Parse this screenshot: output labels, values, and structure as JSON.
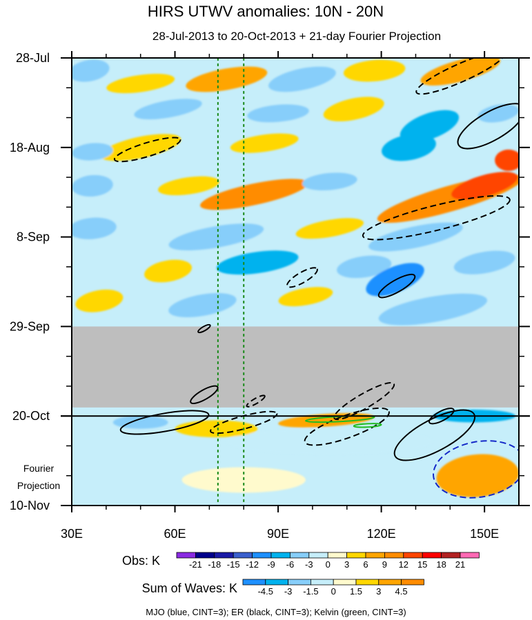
{
  "chart_data": {
    "type": "heatmap",
    "title": "HIRS UTWV anomalies: 10N - 20N",
    "subtitle": "28-Jul-2013 to 20-Oct-2013 + 21-day Fourier Projection",
    "xlim": [
      30,
      160
    ],
    "x_ticks": [
      {
        "value": 30,
        "label": "30E"
      },
      {
        "value": 60,
        "label": "60E"
      },
      {
        "value": 90,
        "label": "90E"
      },
      {
        "value": 120,
        "label": "120E"
      },
      {
        "value": 150,
        "label": "150E"
      }
    ],
    "ylim_days": [
      0,
      105
    ],
    "y_ticks": [
      {
        "day": 0,
        "label": "28-Jul"
      },
      {
        "day": 21,
        "label": "18-Aug"
      },
      {
        "day": 42,
        "label": "8-Sep"
      },
      {
        "day": 63,
        "label": "29-Sep"
      },
      {
        "day": 84,
        "label": "20-Oct"
      },
      {
        "day": 105,
        "label": "10-Nov"
      }
    ],
    "projection_label_1": "Fourier",
    "projection_label_2": "Projection",
    "missing_data_days": [
      63,
      82
    ],
    "projection_start_day": 84,
    "reference_longitudes": [
      72.5,
      80
    ],
    "obs_legend": {
      "title": "Obs: K",
      "levels": [
        "-21",
        "-18",
        "-15",
        "-12",
        "-9",
        "-6",
        "-3",
        "0",
        "3",
        "6",
        "9",
        "12",
        "15",
        "18",
        "21"
      ],
      "colors": [
        "#8a2be2",
        "#00008b",
        "#1a1aa6",
        "#3a5fcd",
        "#1e90ff",
        "#00b2ee",
        "#87cefa",
        "#c6eefa",
        "#fffacd",
        "#ffd700",
        "#ffa500",
        "#ff8c00",
        "#ff4500",
        "#ff0000",
        "#b22222",
        "#ff69b4"
      ]
    },
    "waves_legend": {
      "title": "Sum of Waves: K",
      "levels": [
        "-4.5",
        "-3",
        "-1.5",
        "0",
        "1.5",
        "3",
        "4.5"
      ],
      "colors": [
        "#1e90ff",
        "#00b2ee",
        "#87cefa",
        "#c6eefa",
        "#fffacd",
        "#ffd700",
        "#ffa500",
        "#ff8c00"
      ]
    },
    "footer": "MJO (blue, CINT=3); ER (black, CINT=3); Kelvin (green, CINT=3)",
    "blobs": [
      {
        "lon": 35,
        "day": 3,
        "rx": 6,
        "ry": 2.5,
        "level": -5,
        "rot": -10
      },
      {
        "lon": 50,
        "day": 6,
        "rx": 10,
        "ry": 2,
        "level": 3,
        "rot": -8
      },
      {
        "lon": 75,
        "day": 5,
        "rx": 12,
        "ry": 2.5,
        "level": 6,
        "rot": -10
      },
      {
        "lon": 97,
        "day": 5,
        "rx": 10,
        "ry": 2.5,
        "level": -5,
        "rot": -12
      },
      {
        "lon": 118,
        "day": 3,
        "rx": 9,
        "ry": 2.5,
        "level": 4,
        "rot": -5
      },
      {
        "lon": 143,
        "day": 3,
        "rx": 12,
        "ry": 2.5,
        "level": 6,
        "rot": -15
      },
      {
        "lon": 58,
        "day": 12,
        "rx": 10,
        "ry": 2,
        "level": -5,
        "rot": -10
      },
      {
        "lon": 90,
        "day": 13,
        "rx": 9,
        "ry": 2,
        "level": -5,
        "rot": -5
      },
      {
        "lon": 112,
        "day": 12,
        "rx": 9,
        "ry": 2.5,
        "level": 5,
        "rot": -12
      },
      {
        "lon": 134,
        "day": 16,
        "rx": 9,
        "ry": 3,
        "level": -8,
        "rot": -20
      },
      {
        "lon": 154,
        "day": 13,
        "rx": 6,
        "ry": 2,
        "level": -6,
        "rot": -10
      },
      {
        "lon": 50,
        "day": 21,
        "rx": 12,
        "ry": 2.5,
        "level": 5,
        "rot": -12
      },
      {
        "lon": 36,
        "day": 22,
        "rx": 6,
        "ry": 2,
        "level": -4,
        "rot": -5
      },
      {
        "lon": 86,
        "day": 20,
        "rx": 10,
        "ry": 2,
        "level": 4,
        "rot": -8
      },
      {
        "lon": 128,
        "day": 21,
        "rx": 8,
        "ry": 3,
        "level": -9,
        "rot": -10
      },
      {
        "lon": 157,
        "day": 24,
        "rx": 4,
        "ry": 2.5,
        "level": 14,
        "rot": 0
      },
      {
        "lon": 83,
        "day": 32,
        "rx": 16,
        "ry": 2.5,
        "level": 9,
        "rot": -12
      },
      {
        "lon": 64,
        "day": 30,
        "rx": 9,
        "ry": 2,
        "level": 4,
        "rot": -8
      },
      {
        "lon": 36,
        "day": 30,
        "rx": 6,
        "ry": 2.5,
        "level": -6,
        "rot": -5
      },
      {
        "lon": 105,
        "day": 29,
        "rx": 8,
        "ry": 2,
        "level": -5,
        "rot": -5
      },
      {
        "lon": 140,
        "day": 33,
        "rx": 22,
        "ry": 3,
        "level": 9,
        "rot": -16
      },
      {
        "lon": 150,
        "day": 30,
        "rx": 10,
        "ry": 2.5,
        "level": 12,
        "rot": -16
      },
      {
        "lon": 36,
        "day": 40,
        "rx": 7,
        "ry": 2.5,
        "level": -5,
        "rot": -5
      },
      {
        "lon": 72,
        "day": 42,
        "rx": 14,
        "ry": 2.5,
        "level": -5,
        "rot": -10
      },
      {
        "lon": 105,
        "day": 40,
        "rx": 10,
        "ry": 2,
        "level": 4,
        "rot": -10
      },
      {
        "lon": 130,
        "day": 42,
        "rx": 14,
        "ry": 2.5,
        "level": -5,
        "rot": -12
      },
      {
        "lon": 58,
        "day": 50,
        "rx": 7,
        "ry": 2.5,
        "level": 4,
        "rot": -10
      },
      {
        "lon": 84,
        "day": 48,
        "rx": 12,
        "ry": 2.5,
        "level": -7,
        "rot": -8
      },
      {
        "lon": 115,
        "day": 49,
        "rx": 8,
        "ry": 2.5,
        "level": -5,
        "rot": -8
      },
      {
        "lon": 124,
        "day": 52,
        "rx": 9,
        "ry": 3,
        "level": -10,
        "rot": -22
      },
      {
        "lon": 150,
        "day": 48,
        "rx": 9,
        "ry": 2.5,
        "level": -6,
        "rot": -10
      },
      {
        "lon": 38,
        "day": 57,
        "rx": 7,
        "ry": 2.5,
        "level": 4,
        "rot": -10
      },
      {
        "lon": 68,
        "day": 58,
        "rx": 10,
        "ry": 2.5,
        "level": -5,
        "rot": -10
      },
      {
        "lon": 98,
        "day": 56,
        "rx": 8,
        "ry": 2,
        "level": 5,
        "rot": -10
      },
      {
        "lon": 135,
        "day": 59,
        "rx": 16,
        "ry": 3,
        "level": -6,
        "rot": -10
      },
      {
        "lon": 104,
        "day": 85,
        "rx": 14,
        "ry": 1.5,
        "level": 4,
        "rot": -4
      },
      {
        "lon": 147,
        "day": 84,
        "rx": 12,
        "ry": 1.5,
        "level": -4,
        "rot": 0
      },
      {
        "lon": 50,
        "day": 85.5,
        "rx": 8,
        "ry": 1.5,
        "level": -2,
        "rot": 0
      },
      {
        "lon": 105,
        "day": 90,
        "rx": 30,
        "ry": 3,
        "level": -1,
        "rot": 0
      },
      {
        "lon": 72,
        "day": 87,
        "rx": 12,
        "ry": 2,
        "level": 1.5,
        "rot": 0
      },
      {
        "lon": 148,
        "day": 98,
        "rx": 12,
        "ry": 5,
        "level": 3.5,
        "rot": -5
      },
      {
        "lon": 80,
        "day": 99,
        "rx": 18,
        "ry": 3,
        "level": 1,
        "rot": 0
      }
    ],
    "contours": [
      {
        "lon": 52,
        "day": 21.5,
        "rx": 10,
        "ry": 1.6,
        "rot": -17,
        "color": "#000000",
        "dash": true
      },
      {
        "lon": 143,
        "day": 3.5,
        "rx": 14,
        "ry": 2.1,
        "rot": -24,
        "color": "#000000",
        "dash": true
      },
      {
        "lon": 152,
        "day": 16,
        "rx": 11,
        "ry": 3.3,
        "rot": -30,
        "color": "#000000",
        "dash": false
      },
      {
        "lon": 136,
        "day": 37.5,
        "rx": 22,
        "ry": 2.9,
        "rot": -14,
        "color": "#000000",
        "dash": true
      },
      {
        "lon": 97,
        "day": 51.5,
        "rx": 5,
        "ry": 1.2,
        "rot": -30,
        "color": "#000000",
        "dash": true
      },
      {
        "lon": 124.5,
        "day": 53.5,
        "rx": 6,
        "ry": 1.4,
        "rot": -30,
        "color": "#000000",
        "dash": false
      },
      {
        "lon": 68.5,
        "day": 63.5,
        "rx": 2,
        "ry": 0.5,
        "rot": -30,
        "color": "#000000",
        "dash": false
      },
      {
        "lon": 68.5,
        "day": 79,
        "rx": 4.5,
        "ry": 1.1,
        "rot": -30,
        "color": "#000000",
        "dash": false
      },
      {
        "lon": 83.5,
        "day": 80.5,
        "rx": 3,
        "ry": 0.6,
        "rot": -30,
        "color": "#000000",
        "dash": true
      },
      {
        "lon": 115,
        "day": 80.5,
        "rx": 10,
        "ry": 1.7,
        "rot": -30,
        "color": "#000000",
        "dash": true
      },
      {
        "lon": 57,
        "day": 85.5,
        "rx": 13,
        "ry": 2.1,
        "rot": -10,
        "color": "#000000",
        "dash": false
      },
      {
        "lon": 80,
        "day": 85.5,
        "rx": 10,
        "ry": 1.5,
        "rot": -15,
        "color": "#000000",
        "dash": true
      },
      {
        "lon": 110,
        "day": 86.5,
        "rx": 13,
        "ry": 2.6,
        "rot": -20,
        "color": "#000000",
        "dash": true
      },
      {
        "lon": 135.5,
        "day": 88.5,
        "rx": 13,
        "ry": 3.7,
        "rot": -28,
        "color": "#000000",
        "dash": false
      },
      {
        "lon": 137.5,
        "day": 84,
        "rx": 4,
        "ry": 1.1,
        "rot": -28,
        "color": "#000000",
        "dash": false
      },
      {
        "lon": 108,
        "day": 84.7,
        "rx": 10,
        "ry": 0.6,
        "rot": -3,
        "color": "#22bb22",
        "dash": false
      },
      {
        "lon": 116,
        "day": 86.2,
        "rx": 4,
        "ry": 0.4,
        "rot": -3,
        "color": "#22bb22",
        "dash": false
      },
      {
        "lon": 148.5,
        "day": 96.5,
        "rx": 13.5,
        "ry": 6.5,
        "rot": -10,
        "color": "#1428c8",
        "dash": true
      }
    ]
  }
}
